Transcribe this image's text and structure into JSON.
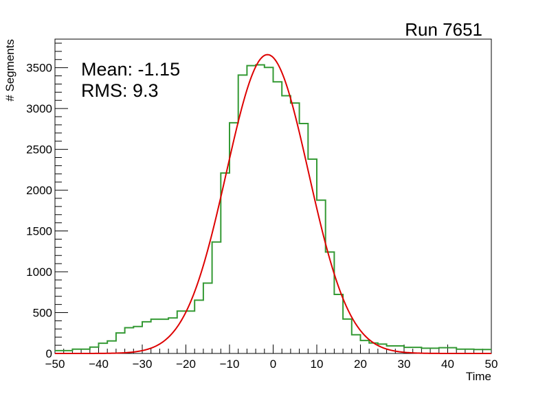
{
  "chart_data": {
    "type": "bar",
    "title": "Run 7651",
    "xlabel": "Time",
    "ylabel": "# Segments",
    "xlim": [
      -50,
      50
    ],
    "ylim": [
      0,
      3850
    ],
    "xticks": [
      -50,
      -40,
      -30,
      -20,
      -10,
      0,
      10,
      20,
      30,
      40,
      50
    ],
    "xtick_labels": [
      "−50",
      "−40",
      "−30",
      "−20",
      "−10",
      "0",
      "10",
      "20",
      "30",
      "40",
      "50"
    ],
    "yticks": [
      0,
      500,
      1000,
      1500,
      2000,
      2500,
      3000,
      3500
    ],
    "ytick_labels": [
      "0",
      "500",
      "1000",
      "1500",
      "2000",
      "2500",
      "3000",
      "3500"
    ],
    "grid": false,
    "stats": {
      "mean_label": "Mean: -1.15",
      "rms_label": "RMS:  9.3"
    },
    "histogram": {
      "name": "data",
      "color": "#339933",
      "bin_edges_start": -50,
      "bin_width": 2,
      "values": [
        35,
        35,
        53,
        53,
        78,
        125,
        153,
        251,
        315,
        330,
        388,
        419,
        419,
        435,
        519,
        519,
        653,
        862,
        1365,
        2210,
        2825,
        3410,
        3525,
        3535,
        3503,
        3327,
        3157,
        3067,
        2816,
        2380,
        1878,
        1242,
        723,
        421,
        229,
        159,
        128,
        115,
        92,
        92,
        75,
        75,
        64,
        64,
        70,
        70,
        53,
        53,
        48,
        48
      ]
    },
    "fit": {
      "name": "gaussian fit",
      "color": "#dd0000",
      "amplitude": 3660,
      "mean": -1.3,
      "sigma": 9.4
    }
  }
}
